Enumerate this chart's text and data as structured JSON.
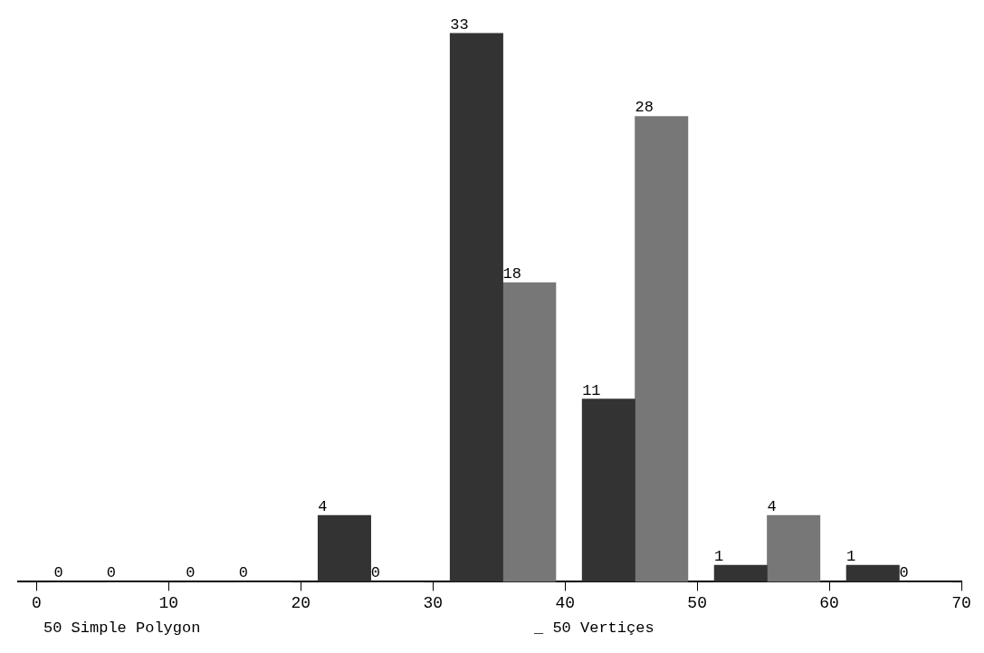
{
  "chart_data": {
    "type": "bar",
    "series": [
      {
        "color": "#333333",
        "x": [
          3.3,
          13.3,
          23.3,
          33.3,
          43.3,
          53.3,
          63.3
        ],
        "values": [
          0,
          0,
          4,
          33,
          11,
          1,
          1
        ]
      },
      {
        "color": "#777777",
        "x": [
          7.3,
          17.3,
          27.3,
          37.3,
          47.3,
          57.3,
          67.3
        ],
        "values": [
          0,
          0,
          0,
          18,
          28,
          4,
          0
        ]
      }
    ],
    "xlim": [
      -1.4,
      70
    ],
    "xticks": [
      0,
      10,
      20,
      30,
      40,
      50,
      60,
      70
    ],
    "tick_labels": "x",
    "data_labels": true,
    "grid": false,
    "legend": false,
    "annotations": [
      "50 Simple Polygon",
      "_ 50 Vertiçes"
    ]
  }
}
